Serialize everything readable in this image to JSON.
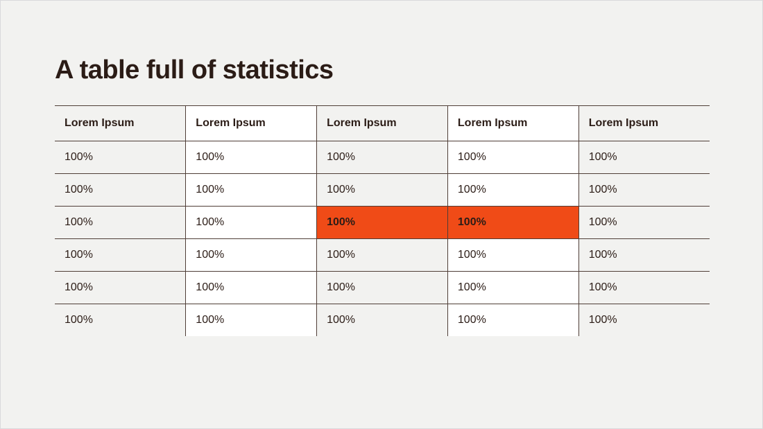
{
  "title": "A table full of statistics",
  "table": {
    "type": "table",
    "border_color": "#4e3d36",
    "col_backgrounds": [
      "#f2f2f0",
      "#ffffff",
      "#f2f2f0",
      "#ffffff",
      "#f2f2f0"
    ],
    "highlight_color": "#f04b17",
    "highlight_text_color": "#ffffff",
    "header_fontweight": 700,
    "cell_fontsize": 16,
    "columns": [
      "Lorem Ipsum",
      "Lorem Ipsum",
      "Lorem Ipsum",
      "Lorem Ipsum",
      "Lorem Ipsum"
    ],
    "rows": [
      [
        "100%",
        "100%",
        "100%",
        "100%",
        "100%"
      ],
      [
        "100%",
        "100%",
        "100%",
        "100%",
        "100%"
      ],
      [
        "100%",
        "100%",
        "100%",
        "100%",
        "100%"
      ],
      [
        "100%",
        "100%",
        "100%",
        "100%",
        "100%"
      ],
      [
        "100%",
        "100%",
        "100%",
        "100%",
        "100%"
      ],
      [
        "100%",
        "100%",
        "100%",
        "100%",
        "100%"
      ]
    ],
    "highlighted_cells": [
      {
        "row": 2,
        "col": 2
      },
      {
        "row": 2,
        "col": 3
      }
    ]
  },
  "background_color": "#f2f2f0"
}
